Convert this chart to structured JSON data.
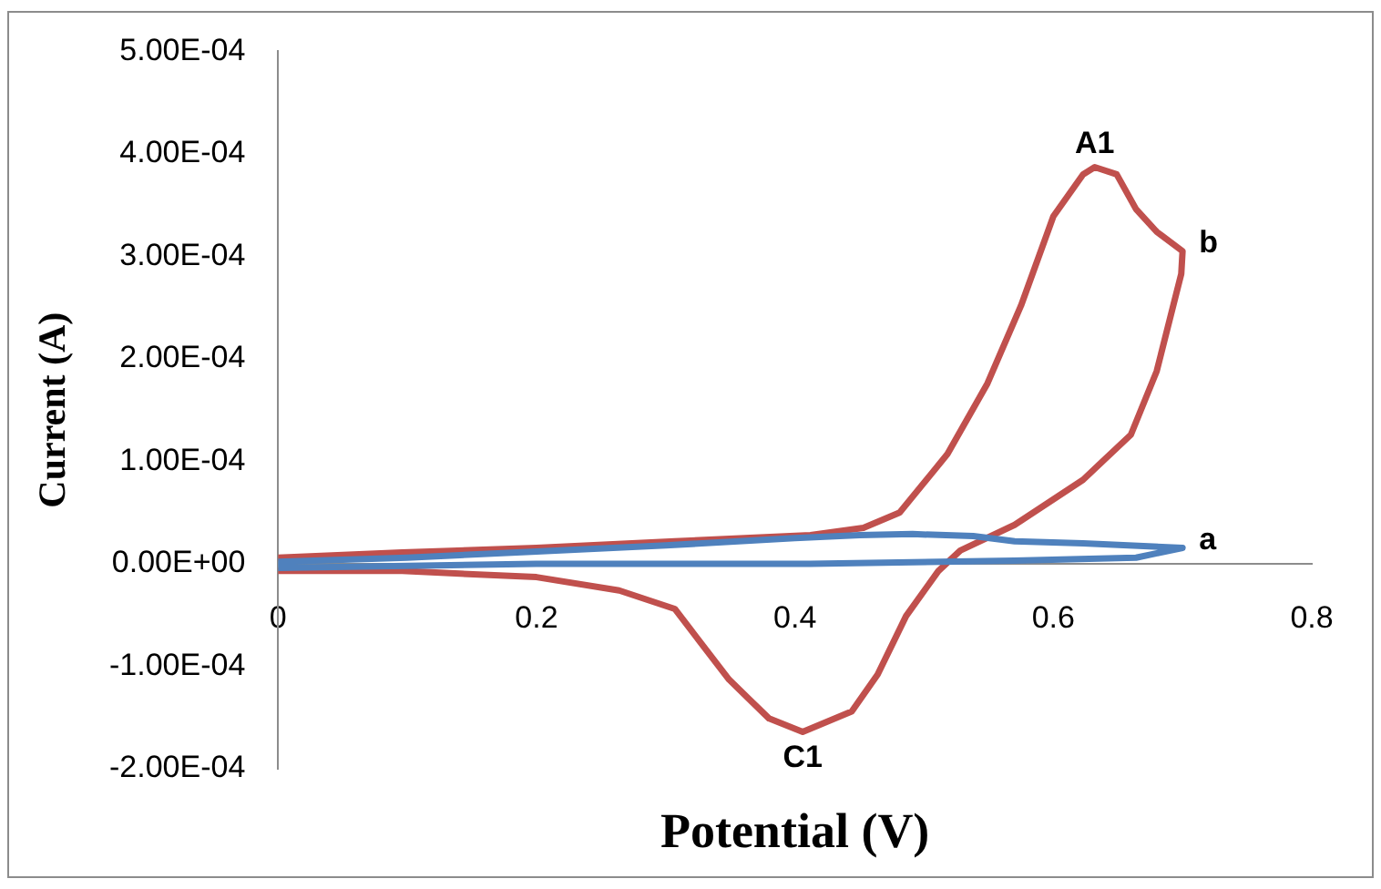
{
  "chart_data": {
    "type": "line",
    "xlabel": "Potential (V)",
    "ylabel": "Current (A)",
    "xlim": [
      0,
      0.8
    ],
    "xticks": [
      0,
      0.2,
      0.4,
      0.6,
      0.8
    ],
    "ylim": [
      -0.0002,
      0.0005
    ],
    "yticks": [
      {
        "value": -0.0002,
        "label": "-2.00E-04"
      },
      {
        "value": -0.0001,
        "label": "-1.00E-04"
      },
      {
        "value": 0,
        "label": "0.00E+00"
      },
      {
        "value": 0.0001,
        "label": "1.00E-04"
      },
      {
        "value": 0.0002,
        "label": "2.00E-04"
      },
      {
        "value": 0.0003,
        "label": "3.00E-04"
      },
      {
        "value": 0.0004,
        "label": "4.00E-04"
      },
      {
        "value": 0.0005,
        "label": "5.00E-04"
      }
    ],
    "grid": false,
    "legend": false,
    "marker": "none",
    "series": [
      {
        "name": "a",
        "color": "#4f81bd",
        "x": [
          0,
          0.1,
          0.2,
          0.3,
          0.4,
          0.45,
          0.491,
          0.538,
          0.57,
          0.623,
          0.7,
          0.664,
          0.57,
          0.412,
          0.2,
          0.1,
          0
        ],
        "values": [
          2e-06,
          6e-06,
          1.2e-05,
          1.8e-05,
          2.5e-05,
          2.8e-05,
          2.9e-05,
          2.7e-05,
          2.2e-05,
          2e-05,
          1.55e-05,
          6e-06,
          3e-06,
          0,
          0,
          -2e-06,
          -4e-06
        ]
      },
      {
        "name": "b",
        "color": "#c0504d",
        "x": [
          0,
          0.096,
          0.2,
          0.307,
          0.412,
          0.453,
          0.481,
          0.518,
          0.549,
          0.575,
          0.6,
          0.623,
          0.632,
          0.649,
          0.664,
          0.68,
          0.7,
          0.699,
          0.68,
          0.66,
          0.623,
          0.57,
          0.528,
          0.511,
          0.486,
          0.464,
          0.444,
          0.406,
          0.38,
          0.349,
          0.307,
          0.264,
          0.2,
          0.096,
          0
        ],
        "values": [
          6e-06,
          1.1e-05,
          1.55e-05,
          2.2e-05,
          2.8e-05,
          3.5e-05,
          5e-05,
          0.000107,
          0.000176,
          0.000252,
          0.000339,
          0.00038,
          0.000387,
          0.00038,
          0.000346,
          0.000324,
          0.000305,
          0.000283,
          0.000188,
          0.000126,
          8.2e-05,
          3.8e-05,
          1.3e-05,
          -7e-06,
          -5.1e-05,
          -0.000108,
          -0.000144,
          -0.000164,
          -0.000151,
          -0.000113,
          -4.4e-05,
          -2.6e-05,
          -1.3e-05,
          -7e-06,
          -7e-06
        ]
      }
    ],
    "annotations": [
      {
        "text": "A1",
        "x": 0.632,
        "y": 0.000387
      },
      {
        "text": "C1",
        "x": 0.406,
        "y": -0.000164
      }
    ]
  }
}
